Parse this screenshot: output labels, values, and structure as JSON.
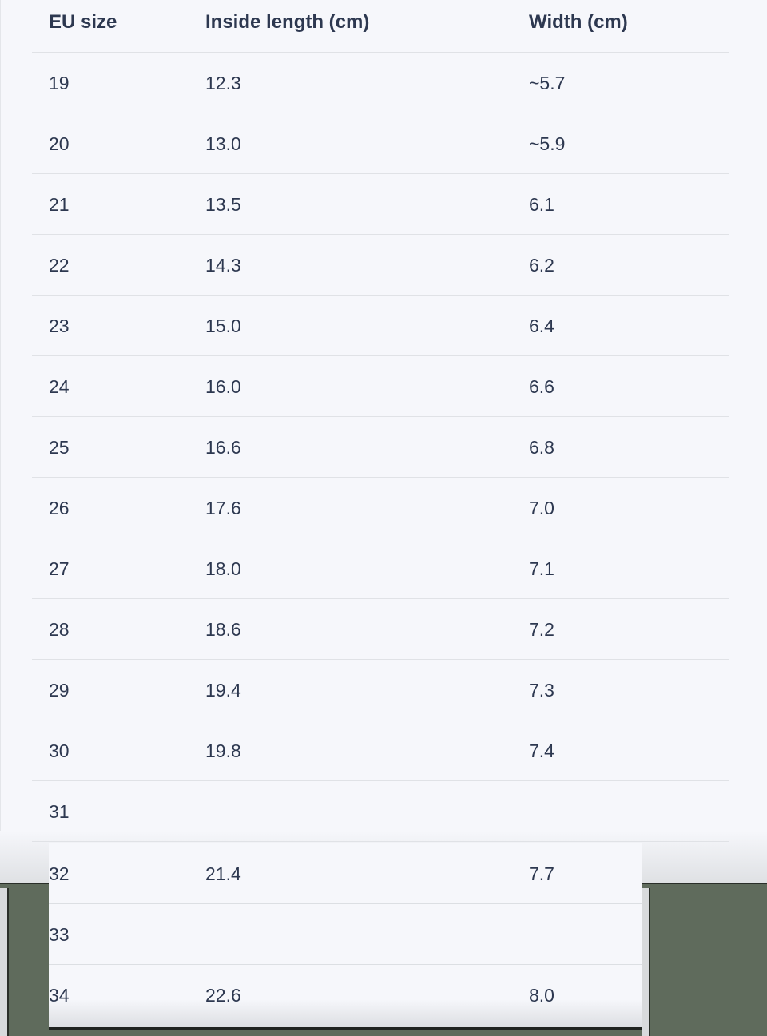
{
  "table": {
    "headers": [
      "EU size",
      "Inside length (cm)",
      "Width (cm)"
    ],
    "rows": [
      [
        "19",
        "12.3",
        "~5.7"
      ],
      [
        "20",
        "13.0",
        "~5.9"
      ],
      [
        "21",
        "13.5",
        "6.1"
      ],
      [
        "22",
        "14.3",
        "6.2"
      ],
      [
        "23",
        "15.0",
        "6.4"
      ],
      [
        "24",
        "16.0",
        "6.6"
      ],
      [
        "25",
        "16.6",
        "6.8"
      ],
      [
        "26",
        "17.6",
        "7.0"
      ],
      [
        "27",
        "18.0",
        "7.1"
      ],
      [
        "28",
        "18.6",
        "7.2"
      ],
      [
        "29",
        "19.4",
        "7.3"
      ],
      [
        "30",
        "19.8",
        "7.4"
      ],
      [
        "31",
        "",
        ""
      ]
    ],
    "overlay_rows": [
      [
        "32",
        "21.4",
        "7.7"
      ],
      [
        "33",
        "",
        ""
      ],
      [
        "34",
        "22.6",
        "8.0"
      ]
    ]
  },
  "colors": {
    "text": "#2d3850",
    "background": "#f6f7fb",
    "backdrop": "#5f6b5c"
  }
}
